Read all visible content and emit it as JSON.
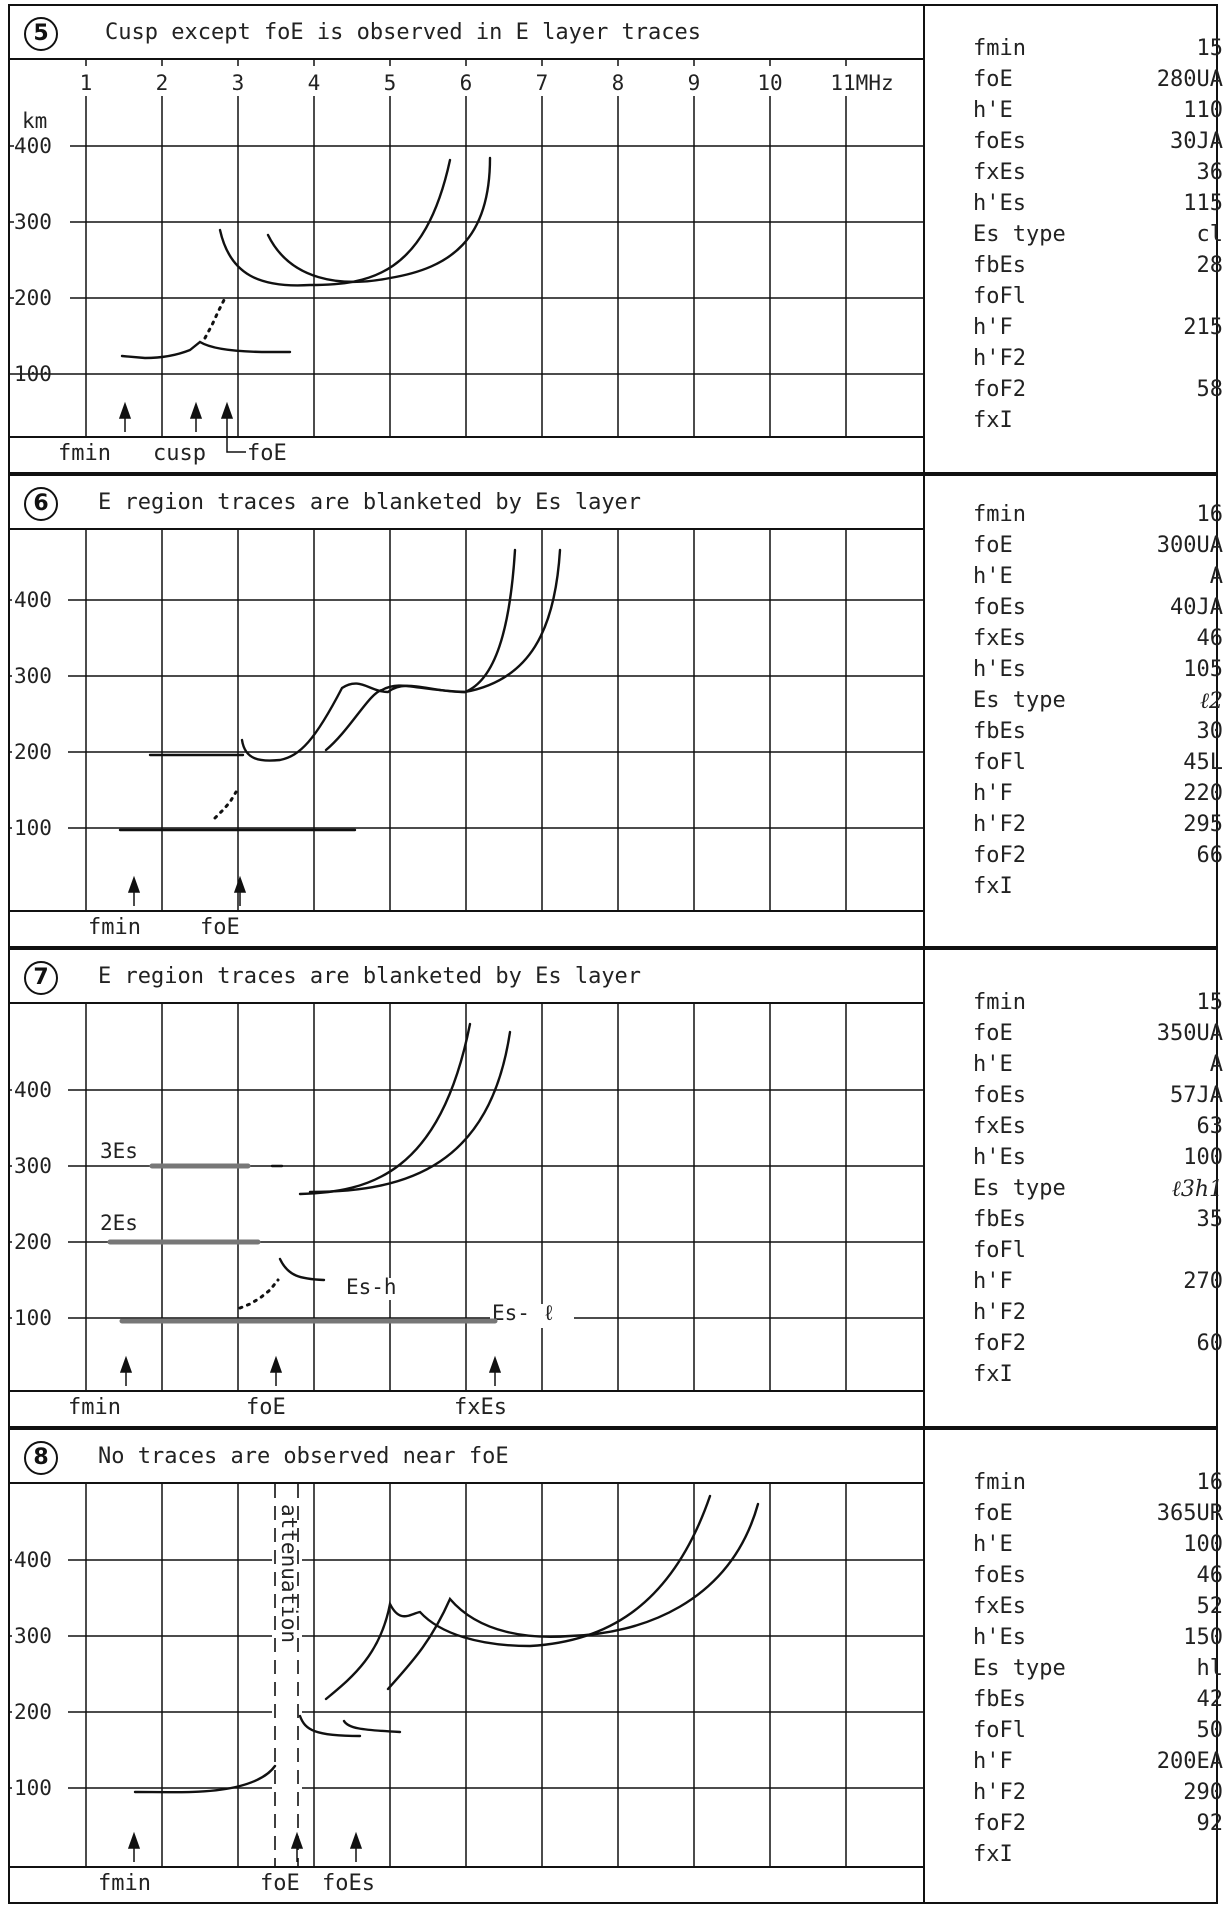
{
  "panels": [
    {
      "number": "5",
      "title": "Cusp except foE is observed in E layer traces",
      "freq_ticks": [
        "1",
        "2",
        "3",
        "4",
        "5",
        "6",
        "7",
        "8",
        "9",
        "10",
        "11MHz"
      ],
      "height_unit": "km",
      "height_ticks": [
        "100",
        "200",
        "300",
        "400"
      ],
      "footer_labels": [
        "fmin",
        "cusp",
        "foE"
      ],
      "trace_labels": [],
      "params": [
        {
          "name": "fmin",
          "value": "15"
        },
        {
          "name": "foE",
          "value": "280UA"
        },
        {
          "name": "h'E",
          "value": "110"
        },
        {
          "name": "foEs",
          "value": "30JA"
        },
        {
          "name": "fxEs",
          "value": "36"
        },
        {
          "name": "h'Es",
          "value": "115"
        },
        {
          "name": "Es type",
          "value": "cl"
        },
        {
          "name": "fbEs",
          "value": "28"
        },
        {
          "name": "foFl",
          "value": ""
        },
        {
          "name": "h'F",
          "value": "215"
        },
        {
          "name": "h'F2",
          "value": ""
        },
        {
          "name": "foF2",
          "value": "58"
        },
        {
          "name": "fxI",
          "value": ""
        }
      ]
    },
    {
      "number": "6",
      "title": "E region traces are blanketed by Es layer",
      "height_ticks": [
        "100",
        "200",
        "300",
        "400"
      ],
      "footer_labels": [
        "fmin",
        "foE"
      ],
      "trace_labels": [],
      "params": [
        {
          "name": "fmin",
          "value": "16"
        },
        {
          "name": "foE",
          "value": "300UA"
        },
        {
          "name": "h'E",
          "value": "A"
        },
        {
          "name": "foEs",
          "value": "40JA"
        },
        {
          "name": "fxEs",
          "value": "46"
        },
        {
          "name": "h'Es",
          "value": "105"
        },
        {
          "name": "Es type",
          "value": "ℓ2"
        },
        {
          "name": "fbEs",
          "value": "30"
        },
        {
          "name": "foFl",
          "value": "45L"
        },
        {
          "name": "h'F",
          "value": "220"
        },
        {
          "name": "h'F2",
          "value": "295"
        },
        {
          "name": "foF2",
          "value": "66"
        },
        {
          "name": "fxI",
          "value": ""
        }
      ]
    },
    {
      "number": "7",
      "title": "E region traces are blanketed by Es layer",
      "height_ticks": [
        "100",
        "200",
        "300",
        "400"
      ],
      "footer_labels": [
        "fmin",
        "foE",
        "fxEs"
      ],
      "trace_labels": [
        "3Es",
        "2Es",
        "Es-h",
        "Es- ℓ"
      ],
      "params": [
        {
          "name": "fmin",
          "value": "15"
        },
        {
          "name": "foE",
          "value": "350UA"
        },
        {
          "name": "h'E",
          "value": "A"
        },
        {
          "name": "foEs",
          "value": "57JA"
        },
        {
          "name": "fxEs",
          "value": "63"
        },
        {
          "name": "h'Es",
          "value": "100"
        },
        {
          "name": "Es type",
          "value": "ℓ3h1"
        },
        {
          "name": "fbEs",
          "value": "35"
        },
        {
          "name": "foFl",
          "value": ""
        },
        {
          "name": "h'F",
          "value": "270"
        },
        {
          "name": "h'F2",
          "value": ""
        },
        {
          "name": "foF2",
          "value": "60"
        },
        {
          "name": "fxI",
          "value": ""
        }
      ]
    },
    {
      "number": "8",
      "title": "No traces are observed near foE",
      "height_ticks": [
        "100",
        "200",
        "300",
        "400"
      ],
      "footer_labels": [
        "fmin",
        "foE",
        "foEs"
      ],
      "trace_labels": [
        "attenuation"
      ],
      "params": [
        {
          "name": "fmin",
          "value": "16"
        },
        {
          "name": "foE",
          "value": "365UR"
        },
        {
          "name": "h'E",
          "value": "100"
        },
        {
          "name": "foEs",
          "value": "46"
        },
        {
          "name": "fxEs",
          "value": "52"
        },
        {
          "name": "h'Es",
          "value": "150"
        },
        {
          "name": "Es type",
          "value": "hl"
        },
        {
          "name": "fbEs",
          "value": "42"
        },
        {
          "name": "foFl",
          "value": "50"
        },
        {
          "name": "h'F",
          "value": "200EA"
        },
        {
          "name": "h'F2",
          "value": "290"
        },
        {
          "name": "foF2",
          "value": "92"
        },
        {
          "name": "fxI",
          "value": ""
        }
      ]
    }
  ]
}
